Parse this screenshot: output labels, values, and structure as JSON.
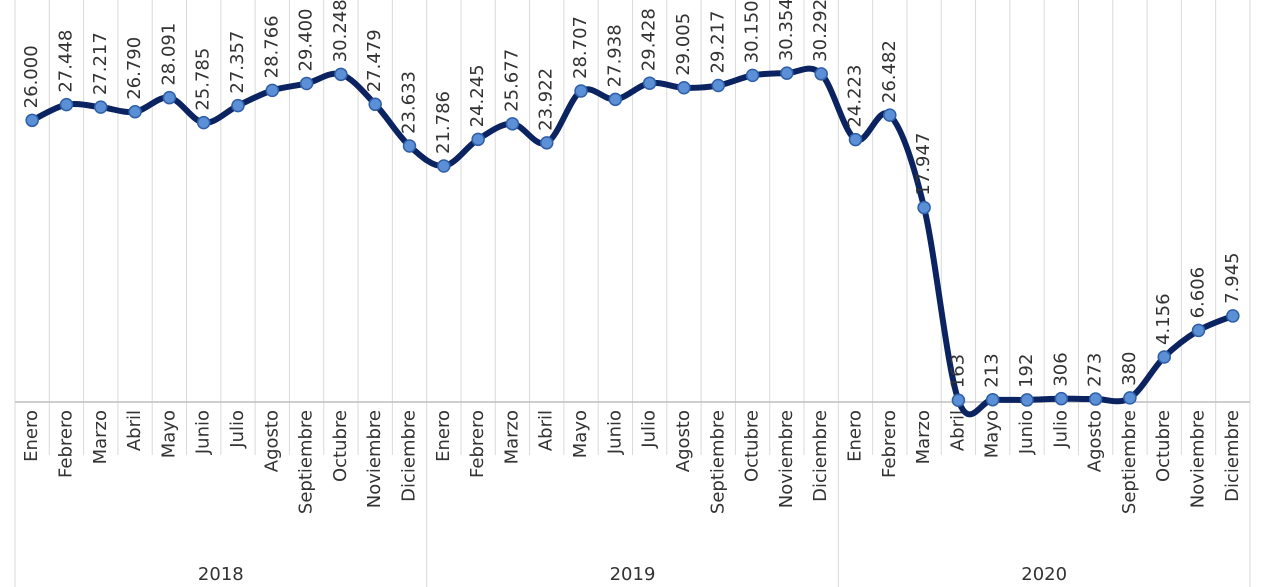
{
  "chart_data": {
    "type": "line",
    "categories": [
      "Enero",
      "Febrero",
      "Marzo",
      "Abril",
      "Mayo",
      "Junio",
      "Julio",
      "Agosto",
      "Septiembre",
      "Octubre",
      "Noviembre",
      "Diciembre",
      "Enero",
      "Febrero",
      "Marzo",
      "Abril",
      "Mayo",
      "Junio",
      "Julio",
      "Agosto",
      "Septiembre",
      "Octubre",
      "Noviembre",
      "Diciembre",
      "Enero",
      "Febrero",
      "Marzo",
      "Abril",
      "Mayo",
      "Junio",
      "Julio",
      "Agosto",
      "Septiembre",
      "Octubre",
      "Noviembre",
      "Diciembre"
    ],
    "category_groups": [
      "2018",
      "2019",
      "2020"
    ],
    "values": [
      26000,
      27448,
      27217,
      26790,
      28091,
      25785,
      27357,
      28766,
      29400,
      30248,
      27479,
      23633,
      21786,
      24245,
      25677,
      23922,
      28707,
      27938,
      29428,
      29005,
      29217,
      30150,
      30354,
      30292,
      24223,
      26482,
      17947,
      163,
      213,
      192,
      306,
      273,
      380,
      4156,
      6606,
      7945
    ],
    "value_labels": [
      "26.000",
      "27.448",
      "27.217",
      "26.790",
      "28.091",
      "25.785",
      "27.357",
      "28.766",
      "29.400",
      "30.248",
      "27.479",
      "23.633",
      "21.786",
      "24.245",
      "25.677",
      "23.922",
      "28.707",
      "27.938",
      "29.428",
      "29.005",
      "29.217",
      "30.150",
      "30.354",
      "30.292",
      "24.223",
      "26.482",
      "17.947",
      "163",
      "213",
      "192",
      "306",
      "273",
      "380",
      "4.156",
      "6.606",
      "7.945"
    ],
    "color": "#0b2461",
    "marker_color": "#5b8fd6",
    "ylim": [
      0,
      36000
    ],
    "grid": true
  }
}
